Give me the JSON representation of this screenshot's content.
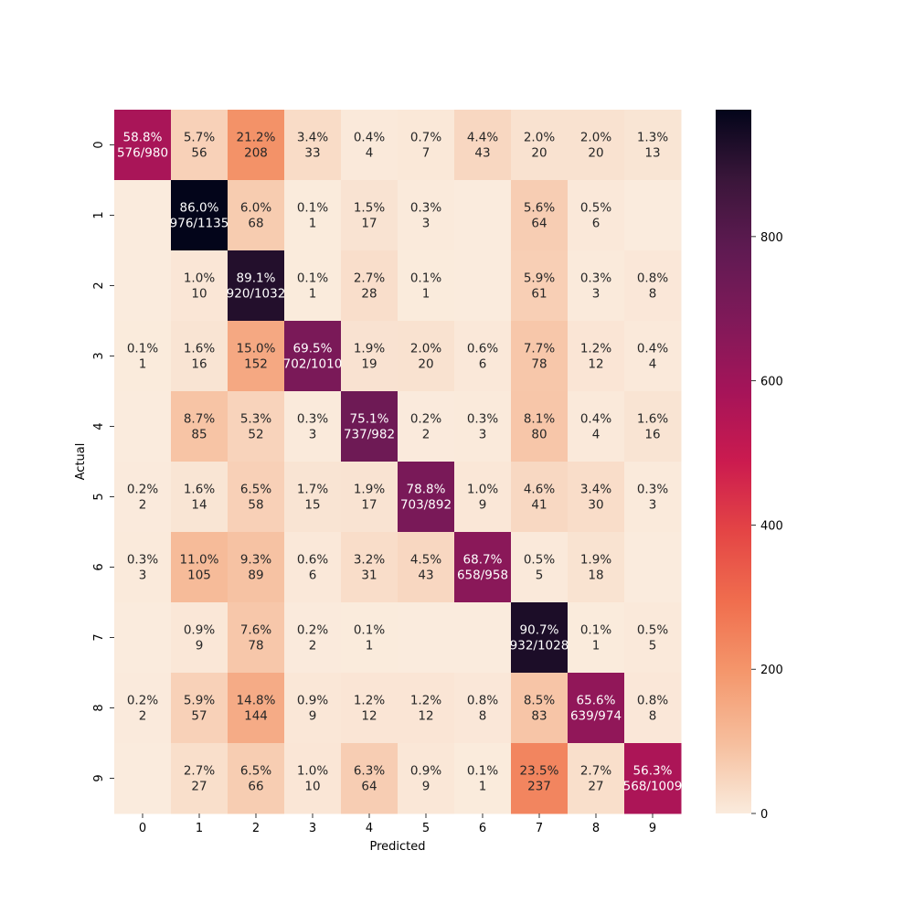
{
  "chart_data": {
    "type": "heatmap",
    "xlabel": "Predicted",
    "ylabel": "Actual",
    "x_categories": [
      "0",
      "1",
      "2",
      "3",
      "4",
      "5",
      "6",
      "7",
      "8",
      "9"
    ],
    "y_categories": [
      "0",
      "1",
      "2",
      "3",
      "4",
      "5",
      "6",
      "7",
      "8",
      "9"
    ],
    "colorbar": {
      "min": 0,
      "max": 976,
      "ticks": [
        0,
        200,
        400,
        600,
        800
      ]
    },
    "values": [
      [
        576,
        56,
        208,
        33,
        4,
        7,
        43,
        20,
        20,
        13
      ],
      [
        0,
        976,
        68,
        1,
        17,
        3,
        0,
        64,
        6,
        0
      ],
      [
        0,
        10,
        920,
        1,
        28,
        1,
        0,
        61,
        3,
        8
      ],
      [
        1,
        16,
        152,
        702,
        19,
        20,
        6,
        78,
        12,
        4
      ],
      [
        0,
        85,
        52,
        3,
        737,
        2,
        3,
        80,
        4,
        16
      ],
      [
        2,
        14,
        58,
        15,
        17,
        703,
        9,
        41,
        30,
        3
      ],
      [
        3,
        105,
        89,
        6,
        31,
        43,
        658,
        5,
        18,
        0
      ],
      [
        0,
        9,
        78,
        2,
        1,
        0,
        0,
        932,
        1,
        5
      ],
      [
        2,
        57,
        144,
        9,
        12,
        12,
        8,
        83,
        639,
        8
      ],
      [
        0,
        27,
        66,
        10,
        64,
        9,
        1,
        237,
        27,
        568
      ]
    ],
    "annotations": [
      [
        "58.8%\n576/980",
        "5.7%\n56",
        "21.2%\n208",
        "3.4%\n33",
        "0.4%\n4",
        "0.7%\n7",
        "4.4%\n43",
        "2.0%\n20",
        "2.0%\n20",
        "1.3%\n13"
      ],
      [
        "",
        "86.0%\n976/1135",
        "6.0%\n68",
        "0.1%\n1",
        "1.5%\n17",
        "0.3%\n3",
        "",
        "5.6%\n64",
        "0.5%\n6",
        ""
      ],
      [
        "",
        "1.0%\n10",
        "89.1%\n920/1032",
        "0.1%\n1",
        "2.7%\n28",
        "0.1%\n1",
        "",
        "5.9%\n61",
        "0.3%\n3",
        "0.8%\n8"
      ],
      [
        "0.1%\n1",
        "1.6%\n16",
        "15.0%\n152",
        "69.5%\n702/1010",
        "1.9%\n19",
        "2.0%\n20",
        "0.6%\n6",
        "7.7%\n78",
        "1.2%\n12",
        "0.4%\n4"
      ],
      [
        "",
        "8.7%\n85",
        "5.3%\n52",
        "0.3%\n3",
        "75.1%\n737/982",
        "0.2%\n2",
        "0.3%\n3",
        "8.1%\n80",
        "0.4%\n4",
        "1.6%\n16"
      ],
      [
        "0.2%\n2",
        "1.6%\n14",
        "6.5%\n58",
        "1.7%\n15",
        "1.9%\n17",
        "78.8%\n703/892",
        "1.0%\n9",
        "4.6%\n41",
        "3.4%\n30",
        "0.3%\n3"
      ],
      [
        "0.3%\n3",
        "11.0%\n105",
        "9.3%\n89",
        "0.6%\n6",
        "3.2%\n31",
        "4.5%\n43",
        "68.7%\n658/958",
        "0.5%\n5",
        "1.9%\n18",
        ""
      ],
      [
        "",
        "0.9%\n9",
        "7.6%\n78",
        "0.2%\n2",
        "0.1%\n1",
        "",
        "",
        "90.7%\n932/1028",
        "0.1%\n1",
        "0.5%\n5"
      ],
      [
        "0.2%\n2",
        "5.9%\n57",
        "14.8%\n144",
        "0.9%\n9",
        "1.2%\n12",
        "1.2%\n12",
        "0.8%\n8",
        "8.5%\n83",
        "65.6%\n639/974",
        "0.8%\n8"
      ],
      [
        "",
        "2.7%\n27",
        "6.5%\n66",
        "1.0%\n10",
        "6.3%\n64",
        "0.9%\n9",
        "0.1%\n1",
        "23.5%\n237",
        "2.7%\n27",
        "56.3%\n568/1009"
      ]
    ],
    "colormap": "rocket_r",
    "grid": false,
    "legend": "colorbar-right"
  }
}
